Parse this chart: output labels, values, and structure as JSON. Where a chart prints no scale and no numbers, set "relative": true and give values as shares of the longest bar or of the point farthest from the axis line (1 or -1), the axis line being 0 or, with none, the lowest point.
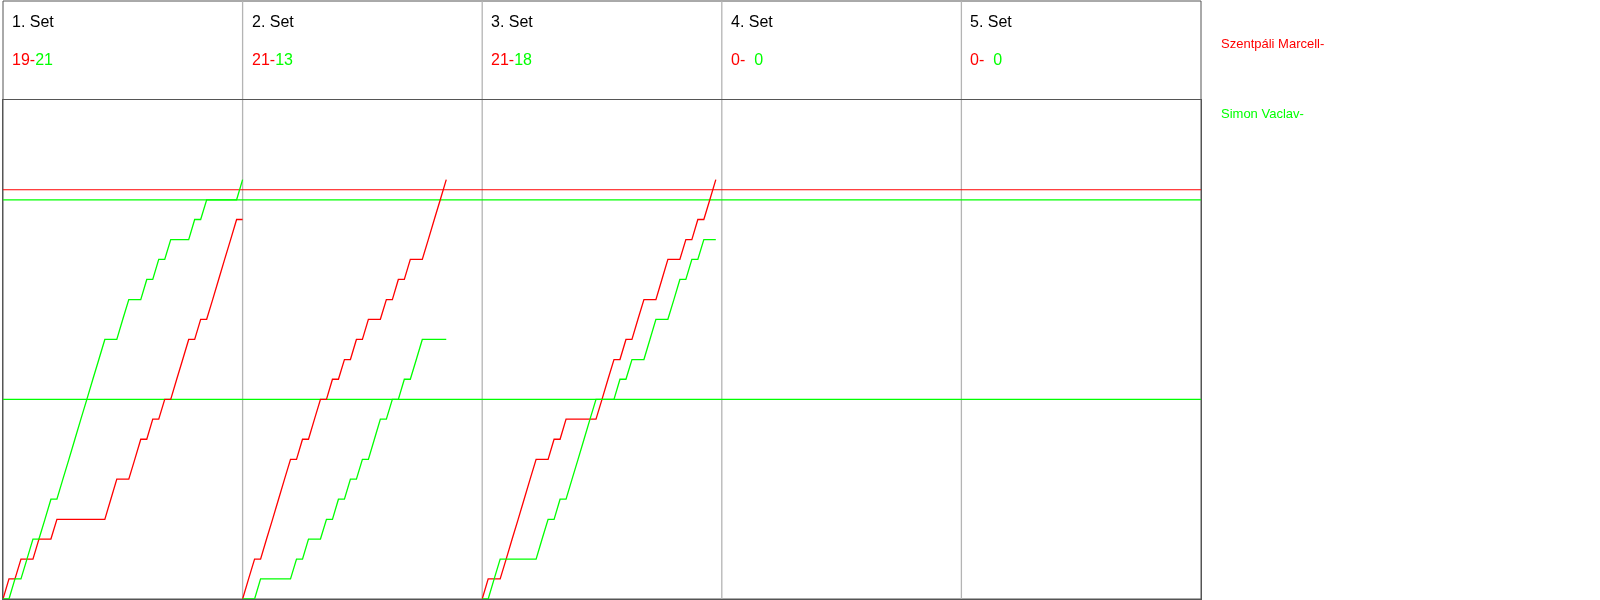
{
  "chart_data": {
    "type": "line",
    "relative": true,
    "categories": [
      null,
      null,
      null,
      null,
      null,
      null,
      null,
      null,
      null,
      null,
      null,
      null,
      null,
      null,
      null,
      null,
      null,
      null,
      null,
      null,
      null,
      null,
      null,
      null,
      null,
      null,
      null,
      null,
      null,
      null,
      null,
      null,
      null,
      null,
      null,
      null,
      null,
      null,
      null,
      null,
      null,
      null,
      null,
      null,
      null,
      null,
      null,
      null,
      null,
      null,
      null,
      null,
      null,
      null,
      null,
      null,
      null,
      null,
      null,
      null,
      null,
      null,
      null,
      null,
      null,
      null,
      null,
      null,
      null,
      null,
      null,
      null,
      null,
      null,
      null,
      null,
      null,
      null,
      null,
      null,
      null,
      null,
      null,
      null,
      null,
      null,
      null,
      null,
      null,
      null,
      null,
      null,
      null,
      null,
      null,
      null,
      null,
      null,
      null,
      null,
      null,
      null,
      null,
      null,
      null,
      null,
      null,
      null,
      null,
      null,
      null,
      null,
      null,
      null,
      null,
      null,
      null,
      null,
      null,
      null,
      null,
      null,
      null,
      null,
      null,
      null,
      null,
      null,
      null,
      null,
      null,
      null,
      null,
      null,
      null,
      null,
      null,
      null,
      null,
      null,
      null,
      null,
      null,
      null,
      null,
      null,
      null,
      null,
      null,
      null,
      null,
      null,
      null,
      null,
      null,
      null,
      null,
      null,
      null,
      null,
      null,
      null,
      null,
      null,
      null,
      null,
      null,
      null,
      null,
      null,
      null,
      null,
      null,
      null,
      null,
      null,
      null,
      null,
      null,
      null,
      null,
      null,
      null,
      null,
      null,
      null,
      null,
      null,
      null,
      null,
      null,
      null,
      null,
      null,
      null,
      null,
      null,
      null,
      null,
      null,
      null
    ],
    "marker": "none",
    "line_style": "solid",
    "annotations": [
      "1. Set",
      "19-21",
      "2. Set",
      "21-13",
      "3. Set",
      "21-18",
      "4. Set",
      "0-  0",
      "5. Set",
      "0-  0"
    ],
    "ref_lines": [
      {
        "axis": "y",
        "value": 0.976,
        "color": "#ff0000"
      },
      {
        "axis": "y",
        "value": 0.952,
        "color": "#00ff00"
      },
      {
        "axis": "y",
        "value": 0.476,
        "color": "#00ff00"
      }
    ],
    "series": [
      {
        "name": "Szentpáli Marcell-",
        "color": "#ff0000",
        "values": [
          0,
          0.048,
          0.048,
          0.095,
          0.095,
          0.095,
          0.143,
          0.143,
          0.143,
          0.19,
          0.19,
          0.19,
          0.19,
          0.19,
          0.19,
          0.19,
          0.19,
          0.19,
          0.238,
          0.286,
          0.286,
          0.286,
          0.333,
          0.381,
          0.381,
          0.429,
          0.429,
          0.476,
          0.476,
          0.524,
          0.571,
          0.619,
          0.619,
          0.667,
          0.667,
          0.714,
          0.762,
          0.81,
          0.857,
          0.905,
          0.905,
          null,
          null,
          null,
          null,
          null,
          null,
          null,
          null,
          null,
          null,
          null,
          null,
          null,
          null,
          null,
          null,
          null,
          null,
          null,
          null,
          null,
          null,
          null,
          null,
          null,
          null,
          null,
          null,
          null,
          null,
          null,
          null,
          null,
          null,
          null,
          null,
          null,
          null,
          null,
          null,
          null,
          null,
          null,
          null,
          null,
          null,
          null,
          null,
          null,
          null,
          null,
          null,
          null,
          null,
          null,
          null,
          null,
          null,
          null,
          null,
          null,
          null,
          null,
          null,
          null,
          null,
          null,
          null,
          null,
          null,
          null,
          null,
          null,
          null,
          null,
          null,
          null,
          null,
          null,
          null,
          null,
          null,
          null,
          null,
          null,
          null,
          null,
          null,
          null,
          null,
          null,
          null,
          null,
          null,
          null,
          null,
          null,
          null,
          null,
          null,
          null,
          null,
          null,
          null,
          null,
          null,
          null,
          null,
          null,
          null,
          null,
          null,
          null,
          null,
          null,
          null,
          null,
          null,
          null,
          null,
          null,
          null,
          null,
          null,
          null,
          null,
          null,
          null,
          null,
          null,
          null,
          null,
          null,
          null,
          null,
          null,
          null,
          null,
          null,
          null,
          null,
          null,
          null,
          null,
          null,
          null,
          null,
          null,
          null,
          null,
          null,
          null,
          null,
          null,
          null,
          null,
          null,
          null,
          null,
          null
        ]
      },
      {
        "name": "Simon Vaclav-",
        "color": "#00ff00",
        "values": [
          0,
          0,
          0.048,
          0.048,
          0.095,
          0.143,
          0.143,
          0.19,
          0.238,
          0.238,
          0.286,
          0.333,
          0.381,
          0.429,
          0.476,
          0.524,
          0.571,
          0.619,
          0.619,
          0.619,
          0.667,
          0.714,
          0.714,
          0.714,
          0.762,
          0.762,
          0.81,
          0.81,
          0.857,
          0.857,
          0.857,
          0.857,
          0.905,
          0.905,
          0.952,
          0.952,
          0.952,
          0.952,
          0.952,
          0.952,
          1,
          null,
          null,
          null,
          null,
          null,
          null,
          null,
          null,
          null,
          null,
          null,
          null,
          null,
          null,
          null,
          null,
          null,
          null,
          null,
          null,
          null,
          null,
          null,
          null,
          null,
          null,
          null,
          null,
          null,
          null,
          null,
          null,
          null,
          null,
          null,
          null,
          null,
          null,
          null,
          null,
          null,
          null,
          null,
          null,
          null,
          null,
          null,
          null,
          null,
          null,
          null,
          null,
          null,
          null,
          null,
          null,
          null,
          null,
          null,
          null,
          null,
          null,
          null,
          null,
          null,
          null,
          null,
          null,
          null,
          null,
          null,
          null,
          null,
          null,
          null,
          null,
          null,
          null,
          null,
          null,
          null,
          null,
          null,
          null,
          null,
          null,
          null,
          null,
          null,
          null,
          null,
          null,
          null,
          null,
          null,
          null,
          null,
          null,
          null,
          null,
          null,
          null,
          null,
          null,
          null,
          null,
          null,
          null,
          null,
          null,
          null,
          null,
          null,
          null,
          null,
          null,
          null,
          null,
          null,
          null,
          null,
          null,
          null,
          null,
          null,
          null,
          null,
          null,
          null,
          null,
          null,
          null,
          null,
          null,
          null,
          null,
          null,
          null,
          null,
          null,
          null,
          null,
          null,
          null,
          null,
          null,
          null,
          null,
          null,
          null,
          null,
          null,
          null,
          null,
          null,
          null,
          null,
          null,
          null,
          null
        ]
      },
      {
        "color": "#ff0000",
        "values": [
          null,
          null,
          null,
          null,
          null,
          null,
          null,
          null,
          null,
          null,
          null,
          null,
          null,
          null,
          null,
          null,
          null,
          null,
          null,
          null,
          null,
          null,
          null,
          null,
          null,
          null,
          null,
          null,
          null,
          null,
          null,
          null,
          null,
          null,
          null,
          null,
          null,
          null,
          null,
          null,
          0,
          0.048,
          0.095,
          0.095,
          0.143,
          0.19,
          0.238,
          0.286,
          0.333,
          0.333,
          0.381,
          0.381,
          0.429,
          0.476,
          0.476,
          0.524,
          0.524,
          0.571,
          0.571,
          0.619,
          0.619,
          0.667,
          0.667,
          0.667,
          0.714,
          0.714,
          0.762,
          0.762,
          0.81,
          0.81,
          0.81,
          0.857,
          0.905,
          0.952,
          1,
          null,
          null,
          null,
          null,
          null,
          null,
          null,
          null,
          null,
          null,
          null,
          null,
          null,
          null,
          null,
          null,
          null,
          null,
          null,
          null,
          null,
          null,
          null,
          null,
          null,
          null,
          null,
          null,
          null,
          null,
          null,
          null,
          null,
          null,
          null,
          null,
          null,
          null,
          null,
          null,
          null,
          null,
          null,
          null,
          null,
          null,
          null,
          null,
          null,
          null,
          null,
          null,
          null,
          null,
          null,
          null,
          null,
          null,
          null,
          null,
          null,
          null,
          null,
          null,
          null,
          null,
          null,
          null,
          null,
          null,
          null,
          null,
          null,
          null,
          null,
          null,
          null,
          null,
          null,
          null,
          null,
          null,
          null,
          null,
          null,
          null,
          null,
          null,
          null,
          null,
          null,
          null,
          null,
          null,
          null,
          null,
          null,
          null,
          null,
          null,
          null,
          null,
          null,
          null,
          null,
          null,
          null,
          null,
          null,
          null,
          null,
          null,
          null,
          null,
          null,
          null,
          null,
          null,
          null,
          null,
          null,
          null,
          null,
          null,
          null,
          null
        ]
      },
      {
        "color": "#00ff00",
        "values": [
          null,
          null,
          null,
          null,
          null,
          null,
          null,
          null,
          null,
          null,
          null,
          null,
          null,
          null,
          null,
          null,
          null,
          null,
          null,
          null,
          null,
          null,
          null,
          null,
          null,
          null,
          null,
          null,
          null,
          null,
          null,
          null,
          null,
          null,
          null,
          null,
          null,
          null,
          null,
          null,
          0,
          0,
          0,
          0.048,
          0.048,
          0.048,
          0.048,
          0.048,
          0.048,
          0.095,
          0.095,
          0.143,
          0.143,
          0.143,
          0.19,
          0.19,
          0.238,
          0.238,
          0.286,
          0.286,
          0.333,
          0.333,
          0.381,
          0.429,
          0.429,
          0.476,
          0.476,
          0.524,
          0.524,
          0.571,
          0.619,
          0.619,
          0.619,
          0.619,
          0.619,
          null,
          null,
          null,
          null,
          null,
          null,
          null,
          null,
          null,
          null,
          null,
          null,
          null,
          null,
          null,
          null,
          null,
          null,
          null,
          null,
          null,
          null,
          null,
          null,
          null,
          null,
          null,
          null,
          null,
          null,
          null,
          null,
          null,
          null,
          null,
          null,
          null,
          null,
          null,
          null,
          null,
          null,
          null,
          null,
          null,
          null,
          null,
          null,
          null,
          null,
          null,
          null,
          null,
          null,
          null,
          null,
          null,
          null,
          null,
          null,
          null,
          null,
          null,
          null,
          null,
          null,
          null,
          null,
          null,
          null,
          null,
          null,
          null,
          null,
          null,
          null,
          null,
          null,
          null,
          null,
          null,
          null,
          null,
          null,
          null,
          null,
          null,
          null,
          null,
          null,
          null,
          null,
          null,
          null,
          null,
          null,
          null,
          null,
          null,
          null,
          null,
          null,
          null,
          null,
          null,
          null,
          null,
          null,
          null,
          null,
          null,
          null,
          null,
          null,
          null,
          null,
          null,
          null,
          null,
          null,
          null,
          null,
          null,
          null,
          null,
          null
        ]
      },
      {
        "color": "#ff0000",
        "values": [
          null,
          null,
          null,
          null,
          null,
          null,
          null,
          null,
          null,
          null,
          null,
          null,
          null,
          null,
          null,
          null,
          null,
          null,
          null,
          null,
          null,
          null,
          null,
          null,
          null,
          null,
          null,
          null,
          null,
          null,
          null,
          null,
          null,
          null,
          null,
          null,
          null,
          null,
          null,
          null,
          null,
          null,
          null,
          null,
          null,
          null,
          null,
          null,
          null,
          null,
          null,
          null,
          null,
          null,
          null,
          null,
          null,
          null,
          null,
          null,
          null,
          null,
          null,
          null,
          null,
          null,
          null,
          null,
          null,
          null,
          null,
          null,
          null,
          null,
          null,
          null,
          null,
          null,
          null,
          null,
          0,
          0.048,
          0.048,
          0.048,
          0.095,
          0.143,
          0.19,
          0.238,
          0.286,
          0.333,
          0.333,
          0.333,
          0.381,
          0.381,
          0.429,
          0.429,
          0.429,
          0.429,
          0.429,
          0.429,
          0.476,
          0.524,
          0.571,
          0.571,
          0.619,
          0.619,
          0.667,
          0.714,
          0.714,
          0.714,
          0.762,
          0.81,
          0.81,
          0.81,
          0.857,
          0.857,
          0.905,
          0.905,
          0.952,
          1,
          null,
          null,
          null,
          null,
          null,
          null,
          null,
          null,
          null,
          null,
          null,
          null,
          null,
          null,
          null,
          null,
          null,
          null,
          null,
          null,
          null,
          null,
          null,
          null,
          null,
          null,
          null,
          null,
          null,
          null,
          null,
          null,
          null,
          null,
          null,
          null,
          null,
          null,
          null,
          null,
          null,
          null,
          null,
          null,
          null,
          null,
          null,
          null,
          null,
          null,
          null,
          null,
          null,
          null,
          null,
          null,
          null,
          null,
          null,
          null,
          null,
          null,
          null,
          null,
          null,
          null,
          null,
          null,
          null,
          null,
          null,
          null,
          null,
          null,
          null,
          null,
          null,
          null,
          null,
          null,
          null
        ]
      },
      {
        "color": "#00ff00",
        "values": [
          null,
          null,
          null,
          null,
          null,
          null,
          null,
          null,
          null,
          null,
          null,
          null,
          null,
          null,
          null,
          null,
          null,
          null,
          null,
          null,
          null,
          null,
          null,
          null,
          null,
          null,
          null,
          null,
          null,
          null,
          null,
          null,
          null,
          null,
          null,
          null,
          null,
          null,
          null,
          null,
          null,
          null,
          null,
          null,
          null,
          null,
          null,
          null,
          null,
          null,
          null,
          null,
          null,
          null,
          null,
          null,
          null,
          null,
          null,
          null,
          null,
          null,
          null,
          null,
          null,
          null,
          null,
          null,
          null,
          null,
          null,
          null,
          null,
          null,
          null,
          null,
          null,
          null,
          null,
          null,
          0,
          0,
          0.048,
          0.095,
          0.095,
          0.095,
          0.095,
          0.095,
          0.095,
          0.095,
          0.143,
          0.19,
          0.19,
          0.238,
          0.238,
          0.286,
          0.333,
          0.381,
          0.429,
          0.476,
          0.476,
          0.476,
          0.476,
          0.524,
          0.524,
          0.571,
          0.571,
          0.571,
          0.619,
          0.667,
          0.667,
          0.667,
          0.714,
          0.762,
          0.762,
          0.81,
          0.81,
          0.857,
          0.857,
          0.857,
          null,
          null,
          null,
          null,
          null,
          null,
          null,
          null,
          null,
          null,
          null,
          null,
          null,
          null,
          null,
          null,
          null,
          null,
          null,
          null,
          null,
          null,
          null,
          null,
          null,
          null,
          null,
          null,
          null,
          null,
          null,
          null,
          null,
          null,
          null,
          null,
          null,
          null,
          null,
          null,
          null,
          null,
          null,
          null,
          null,
          null,
          null,
          null,
          null,
          null,
          null,
          null,
          null,
          null,
          null,
          null,
          null,
          null,
          null,
          null,
          null,
          null,
          null,
          null,
          null,
          null,
          null,
          null,
          null,
          null,
          null,
          null,
          null,
          null,
          null,
          null,
          null,
          null,
          null,
          null,
          null
        ]
      }
    ]
  }
}
